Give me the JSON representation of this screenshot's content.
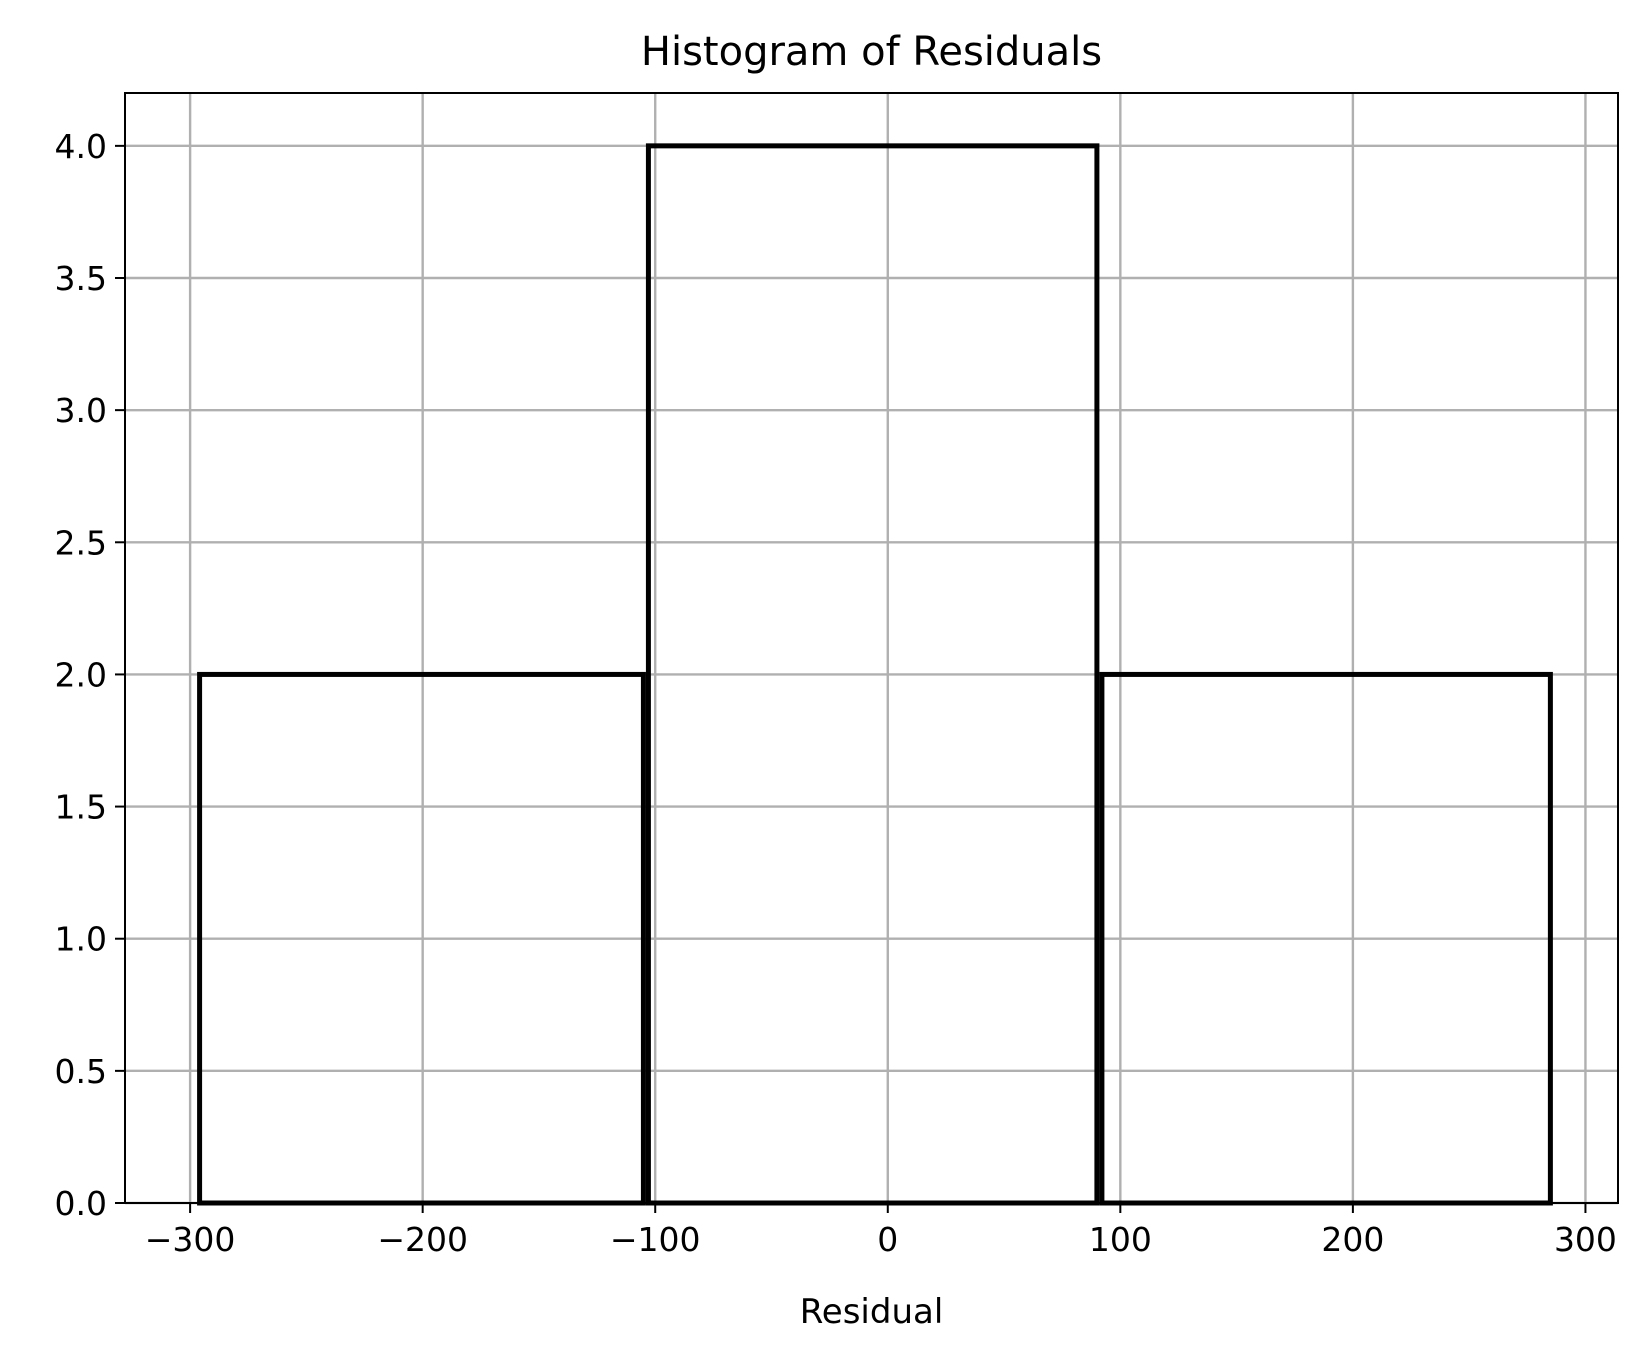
{
  "chart_data": {
    "type": "bar",
    "histogram": true,
    "title": "Histogram of Residuals",
    "xlabel": "Residual",
    "ylabel": "",
    "bins": [
      {
        "x0": -297,
        "x1": -104,
        "count": 2
      },
      {
        "x0": -104,
        "x1": 91,
        "count": 4
      },
      {
        "x0": 91,
        "x1": 286,
        "count": 2
      }
    ],
    "xlim": [
      -328,
      314
    ],
    "ylim": [
      0,
      4.2
    ],
    "xticks": [
      -300,
      -200,
      -100,
      0,
      100,
      200,
      300
    ],
    "xtick_labels": [
      "−300",
      "−200",
      "−100",
      "0",
      "100",
      "200",
      "300"
    ],
    "yticks": [
      0.0,
      0.5,
      1.0,
      1.5,
      2.0,
      2.5,
      3.0,
      3.5,
      4.0
    ],
    "ytick_labels": [
      "0.0",
      "0.5",
      "1.0",
      "1.5",
      "2.0",
      "2.5",
      "3.0",
      "3.5",
      "4.0"
    ],
    "grid": true,
    "colors": {
      "bar_edge": "#000000",
      "bar_fill": "#ffffff",
      "grid": "#b0b0b0"
    }
  }
}
